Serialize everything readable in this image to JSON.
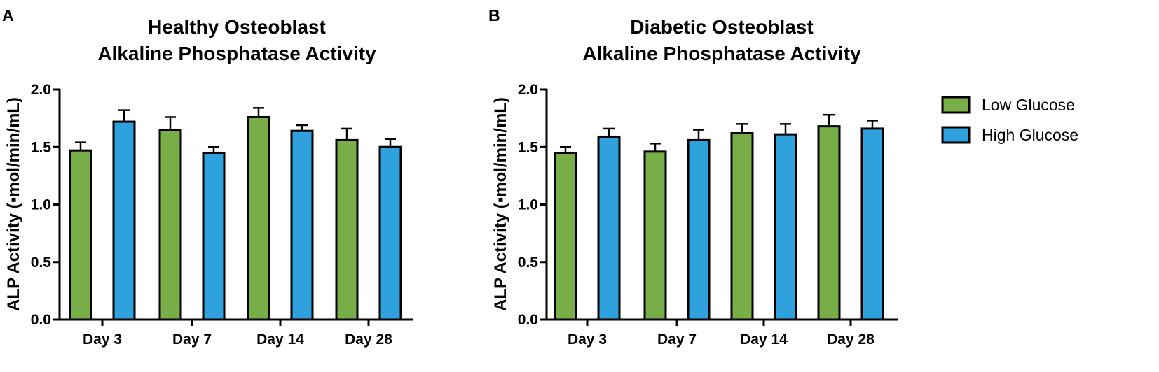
{
  "chart_data": [
    {
      "panel": "A",
      "type": "bar",
      "title_lines": [
        "Healthy Osteoblast",
        "Alkaline Phosphatase Activity"
      ],
      "ylabel": "ALP Activity (▪mol/min/mL)",
      "xlabel": "",
      "ylim": [
        0,
        2.0
      ],
      "yticks": [
        "0.0",
        "0.5",
        "1.0",
        "1.5",
        "2.0"
      ],
      "categories": [
        "Day 3",
        "Day 7",
        "Day 14",
        "Day 28"
      ],
      "series": [
        {
          "name": "Low Glucose",
          "color": "#77ae48",
          "values": [
            1.47,
            1.65,
            1.76,
            1.56
          ],
          "errors": [
            0.07,
            0.11,
            0.08,
            0.1
          ]
        },
        {
          "name": "High Glucose",
          "color": "#2fa1dc",
          "values": [
            1.72,
            1.45,
            1.64,
            1.5
          ],
          "errors": [
            0.1,
            0.05,
            0.05,
            0.07
          ]
        }
      ]
    },
    {
      "panel": "B",
      "type": "bar",
      "title_lines": [
        "Diabetic Osteoblast",
        "Alkaline Phosphatase Activity"
      ],
      "ylabel": "ALP Activity (▪mol/min/mL)",
      "xlabel": "",
      "ylim": [
        0,
        2.0
      ],
      "yticks": [
        "0.0",
        "0.5",
        "1.0",
        "1.5",
        "2.0"
      ],
      "categories": [
        "Day 3",
        "Day 7",
        "Day 14",
        "Day 28"
      ],
      "series": [
        {
          "name": "Low Glucose",
          "color": "#77ae48",
          "values": [
            1.45,
            1.46,
            1.62,
            1.68
          ],
          "errors": [
            0.05,
            0.07,
            0.08,
            0.1
          ]
        },
        {
          "name": "High Glucose",
          "color": "#2fa1dc",
          "values": [
            1.59,
            1.56,
            1.61,
            1.66
          ],
          "errors": [
            0.07,
            0.09,
            0.09,
            0.07
          ]
        }
      ]
    }
  ],
  "legend": {
    "items": [
      {
        "label": "Low Glucose",
        "color": "#77ae48"
      },
      {
        "label": "High Glucose",
        "color": "#2fa1dc"
      }
    ]
  }
}
